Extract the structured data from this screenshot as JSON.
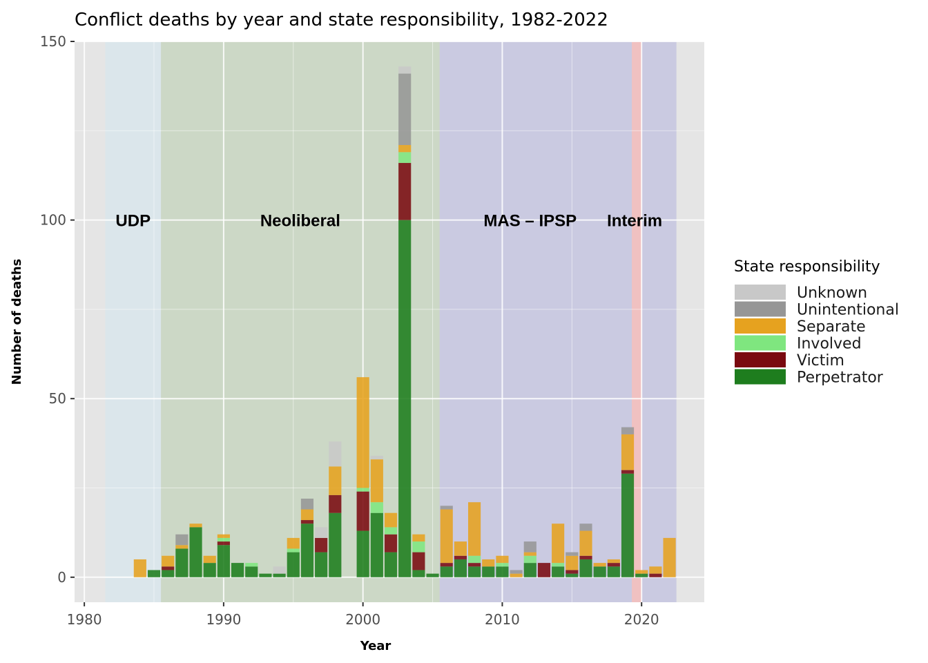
{
  "chart_data": {
    "type": "bar",
    "stacked": true,
    "title": "Conflict deaths by year and state responsibility, 1982-2022",
    "xlabel": "Year",
    "ylabel": "Number of deaths",
    "xlim": [
      1979.3,
      2024.5
    ],
    "ylim": [
      -7,
      150
    ],
    "x_ticks": [
      1980,
      1990,
      2000,
      2010,
      2020
    ],
    "y_ticks": [
      0,
      50,
      100,
      150
    ],
    "grid": true,
    "legend": {
      "title": "State responsibility",
      "position": "right"
    },
    "series": [
      {
        "name": "Unknown",
        "color": "#c8c8c8"
      },
      {
        "name": "Unintentional",
        "color": "#969696"
      },
      {
        "name": "Separate",
        "color": "#e6a21f"
      },
      {
        "name": "Involved",
        "color": "#7fe67f"
      },
      {
        "name": "Victim",
        "color": "#7a0a10"
      },
      {
        "name": "Perpetrator",
        "color": "#1e7d1e"
      }
    ],
    "stack_order": [
      "Perpetrator",
      "Victim",
      "Involved",
      "Separate",
      "Unintentional",
      "Unknown"
    ],
    "periods": [
      {
        "label": "UDP",
        "start": 1981.5,
        "end": 1985.5,
        "color": "#d4e8f0",
        "opacity": 0.55
      },
      {
        "label": "Neoliberal",
        "start": 1985.5,
        "end": 2005.5,
        "color": "#aec8a0",
        "opacity": 0.45
      },
      {
        "label": "MAS – IPSP",
        "start": 2005.5,
        "end": 2019.3,
        "color": "#a8a8dc",
        "opacity": 0.45
      },
      {
        "label": "Interim",
        "start": 2019.3,
        "end": 2020.0,
        "color": "#f7a8a8",
        "opacity": 0.6
      },
      {
        "label": "",
        "start": 2020.0,
        "end": 2022.5,
        "color": "#a8a8dc",
        "opacity": 0.45
      }
    ],
    "period_labels": [
      {
        "text": "UDP",
        "x": 1983.5
      },
      {
        "text": "Neoliberal",
        "x": 1995.5
      },
      {
        "text": "MAS – IPSP",
        "x": 2012.0
      },
      {
        "text": "Interim",
        "x": 2019.5
      }
    ],
    "period_label_y": 100,
    "data": [
      {
        "year": 1984,
        "values": {
          "Separate": 5
        }
      },
      {
        "year": 1985,
        "values": {
          "Perpetrator": 2
        }
      },
      {
        "year": 1986,
        "values": {
          "Perpetrator": 2,
          "Victim": 1,
          "Separate": 3
        }
      },
      {
        "year": 1987,
        "values": {
          "Perpetrator": 8,
          "Separate": 1,
          "Unintentional": 3
        }
      },
      {
        "year": 1988,
        "values": {
          "Perpetrator": 14,
          "Separate": 1
        }
      },
      {
        "year": 1989,
        "values": {
          "Perpetrator": 4,
          "Separate": 2
        }
      },
      {
        "year": 1990,
        "values": {
          "Perpetrator": 9,
          "Victim": 1,
          "Involved": 1,
          "Separate": 1
        }
      },
      {
        "year": 1991,
        "values": {
          "Perpetrator": 4
        }
      },
      {
        "year": 1992,
        "values": {
          "Perpetrator": 3,
          "Involved": 1
        }
      },
      {
        "year": 1993,
        "values": {
          "Perpetrator": 1
        }
      },
      {
        "year": 1994,
        "values": {
          "Perpetrator": 1,
          "Unknown": 2
        }
      },
      {
        "year": 1995,
        "values": {
          "Perpetrator": 7,
          "Involved": 1,
          "Separate": 3
        }
      },
      {
        "year": 1996,
        "values": {
          "Perpetrator": 15,
          "Victim": 1,
          "Separate": 3,
          "Unintentional": 3
        }
      },
      {
        "year": 1997,
        "values": {
          "Perpetrator": 7,
          "Victim": 4,
          "Unknown": 3
        }
      },
      {
        "year": 1998,
        "values": {
          "Perpetrator": 18,
          "Victim": 5,
          "Separate": 8,
          "Unknown": 7
        }
      },
      {
        "year": 2000,
        "values": {
          "Perpetrator": 13,
          "Victim": 11,
          "Involved": 1,
          "Separate": 31
        }
      },
      {
        "year": 2001,
        "values": {
          "Perpetrator": 18,
          "Involved": 3,
          "Separate": 12,
          "Unknown": 1
        }
      },
      {
        "year": 2002,
        "values": {
          "Perpetrator": 7,
          "Victim": 5,
          "Involved": 2,
          "Separate": 4
        }
      },
      {
        "year": 2003,
        "values": {
          "Perpetrator": 100,
          "Victim": 16,
          "Involved": 3,
          "Separate": 2,
          "Unintentional": 20,
          "Unknown": 2
        }
      },
      {
        "year": 2004,
        "values": {
          "Perpetrator": 2,
          "Victim": 5,
          "Involved": 3,
          "Separate": 2
        }
      },
      {
        "year": 2005,
        "values": {
          "Perpetrator": 1
        }
      },
      {
        "year": 2006,
        "values": {
          "Perpetrator": 3,
          "Victim": 1,
          "Separate": 15,
          "Unintentional": 1
        }
      },
      {
        "year": 2007,
        "values": {
          "Perpetrator": 5,
          "Victim": 1,
          "Separate": 4
        }
      },
      {
        "year": 2008,
        "values": {
          "Perpetrator": 3,
          "Victim": 1,
          "Involved": 2,
          "Separate": 15
        }
      },
      {
        "year": 2009,
        "values": {
          "Perpetrator": 3,
          "Separate": 2
        }
      },
      {
        "year": 2010,
        "values": {
          "Perpetrator": 3,
          "Involved": 1,
          "Separate": 2
        }
      },
      {
        "year": 2011,
        "values": {
          "Separate": 1,
          "Unintentional": 1
        }
      },
      {
        "year": 2012,
        "values": {
          "Perpetrator": 4,
          "Involved": 2,
          "Separate": 1,
          "Unintentional": 3
        }
      },
      {
        "year": 2013,
        "values": {
          "Victim": 4
        }
      },
      {
        "year": 2014,
        "values": {
          "Perpetrator": 3,
          "Involved": 1,
          "Separate": 11
        }
      },
      {
        "year": 2015,
        "values": {
          "Perpetrator": 1,
          "Victim": 1,
          "Separate": 4,
          "Unintentional": 1
        }
      },
      {
        "year": 2016,
        "values": {
          "Perpetrator": 5,
          "Victim": 1,
          "Separate": 7,
          "Unintentional": 2
        }
      },
      {
        "year": 2017,
        "values": {
          "Perpetrator": 3,
          "Separate": 1
        }
      },
      {
        "year": 2018,
        "values": {
          "Perpetrator": 3,
          "Victim": 1,
          "Separate": 1
        }
      },
      {
        "year": 2019,
        "values": {
          "Perpetrator": 29,
          "Victim": 1,
          "Separate": 10,
          "Unintentional": 2
        }
      },
      {
        "year": 2020,
        "values": {
          "Perpetrator": 1,
          "Separate": 1
        }
      },
      {
        "year": 2021,
        "values": {
          "Victim": 1,
          "Separate": 2
        }
      },
      {
        "year": 2022,
        "values": {
          "Separate": 11
        }
      }
    ]
  }
}
